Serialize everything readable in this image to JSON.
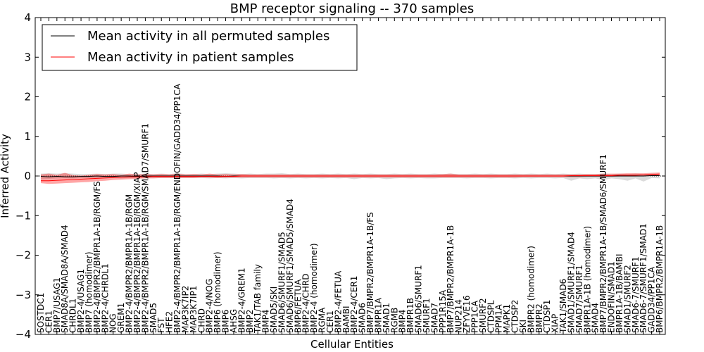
{
  "chart_data": {
    "type": "line",
    "title": "BMP receptor signaling -- 370 samples",
    "xlabel": "Cellular Entities",
    "ylabel": "Inferred Activity",
    "ylim": [
      -4,
      4
    ],
    "yticks": [
      -4,
      -3,
      -2,
      -1,
      0,
      1,
      2,
      3,
      4
    ],
    "legend_position": "upper-left",
    "categories": [
      "SOSTDC1",
      "CER1",
      "BMP7/USAG1",
      "SMAD8A/SMAD8A/SMAD4",
      "CHRDL1",
      "BMP2-4/USAG1",
      "BMP7 (homodimer)",
      "BMP2-4/BMPR2/BMPR1A-1B/RGM/FS",
      "BMP2-4/CHRDL1",
      "NOG",
      "GREM1",
      "BMP2-4/BMPR2/BMPR1A-1B/RGM",
      "BMP2-4/BMPR2/BMPR1A-1B/RGM/XIAP",
      "BMP2-4/BMPR2/BMPR1A-1B/RGM/SMAD7/SMURF1",
      "SMAD5",
      "FST",
      "HFE2",
      "BMP2-4/BMPR2/BMPR1A-1B/RGM/ENDOFIN/GADD34/PP1CA",
      "MAP3K7IP2",
      "MAP3K7IP1",
      "CHRD",
      "BMP2-4/NOG",
      "BMP6 (homodimer)",
      "BMP6",
      "AHSG",
      "BMP2-4/GREM1",
      "BMP2",
      "TAK1/TAB family",
      "BMP4",
      "SMAD5/SKI",
      "SMAD6/SMURF1/SMAD5",
      "SMAD6/SMURF1/SMAD5/SMAD4",
      "BMP6/FETUA",
      "BMP2-4/CHRD",
      "BMP2-4 (homodimer)",
      "RGMA",
      "CER1",
      "BMP2-4/FETUA",
      "BAMBI",
      "BMP2-4/CER1",
      "SMAD6",
      "BMP7/BMPR2/BMPR1A-1B/FS",
      "BMPR1A",
      "SMAD1",
      "RGMB",
      "BMP4",
      "BMPR1B",
      "SMAD6/SMURF1",
      "SMURF1",
      "SMAD7",
      "PPP1R15A",
      "BMP7/BMPR2/BMPR1A-1B",
      "NUP214",
      "ZFYVE16",
      "PPP1CA",
      "SMURF2",
      "CTDSPL",
      "PPM1A",
      "MAPK1",
      "CTDSP2",
      "SKI",
      "BMPR2 (homodimer)",
      "BMPR2",
      "CTDSP1",
      "XIAP",
      "TAK1/SMAD6",
      "SMAD1/SMURF1/SMAD4",
      "SMAD7/SMURF1",
      "BMPR1A-1B (homodimer)",
      "SMAD4",
      "BMP7/BMPR2/BMPR1A-1B/SMAD6/SMURF1",
      "ENDOFIN/SMAD1",
      "BMPR1A-1B/BAMBI",
      "SMAD1/SMURF2",
      "SMAD6-7/SMURF1",
      "SMAD6-7/SMURF1/SMAD1",
      "GADD34/PP1CA",
      "BMP6/BMPR2/BMPR1A-1B"
    ],
    "series": [
      {
        "name": "Mean activity in all permuted samples",
        "color": "#000000",
        "values": [
          -0.01,
          -0.02,
          -0.01,
          -0.02,
          -0.02,
          -0.01,
          -0.01,
          0.0,
          -0.01,
          -0.01,
          0.0,
          0.0,
          -0.01,
          0.0,
          0.0,
          0.0,
          0.0,
          0.0,
          0.0,
          0.0,
          0.0,
          0.0,
          0.0,
          -0.01,
          0.0,
          0.0,
          0.0,
          0.0,
          0.0,
          0.0,
          0.0,
          0.0,
          0.0,
          0.0,
          0.0,
          0.0,
          0.0,
          0.0,
          0.0,
          0.0,
          0.0,
          0.0,
          0.0,
          0.0,
          0.0,
          0.0,
          0.0,
          0.0,
          0.0,
          0.0,
          0.0,
          0.0,
          0.0,
          0.0,
          0.0,
          0.0,
          0.0,
          0.0,
          0.0,
          0.0,
          0.0,
          0.0,
          0.0,
          0.0,
          0.0,
          0.0,
          0.0,
          0.0,
          0.0,
          0.0,
          0.0,
          0.0,
          0.0,
          0.0,
          0.0,
          0.0,
          0.01,
          0.01
        ],
        "band_low": [
          -0.08,
          -0.07,
          -0.06,
          -0.05,
          -0.06,
          -0.05,
          -0.05,
          -0.05,
          -0.06,
          -0.05,
          -0.06,
          -0.05,
          -0.05,
          -0.05,
          -0.05,
          -0.05,
          -0.05,
          -0.05,
          -0.05,
          -0.05,
          -0.05,
          -0.06,
          -0.05,
          -0.06,
          -0.05,
          -0.06,
          -0.05,
          -0.05,
          -0.05,
          -0.06,
          -0.05,
          -0.06,
          -0.05,
          -0.06,
          -0.05,
          -0.06,
          -0.05,
          -0.06,
          -0.05,
          -0.08,
          -0.05,
          -0.06,
          -0.05,
          -0.08,
          -0.06,
          -0.05,
          -0.06,
          -0.05,
          -0.06,
          -0.06,
          -0.05,
          -0.05,
          -0.05,
          -0.06,
          -0.05,
          -0.05,
          -0.06,
          -0.05,
          -0.05,
          -0.06,
          -0.05,
          -0.06,
          -0.05,
          -0.05,
          -0.06,
          -0.05,
          -0.12,
          -0.06,
          -0.08,
          -0.06,
          -0.1,
          -0.06,
          -0.08,
          -0.12,
          -0.06,
          -0.14,
          -0.05,
          -0.06
        ],
        "band_high": [
          0.06,
          0.07,
          0.06,
          0.07,
          0.06,
          0.05,
          0.05,
          0.06,
          0.05,
          0.06,
          0.06,
          0.05,
          0.05,
          0.06,
          0.05,
          0.06,
          0.05,
          0.07,
          0.05,
          0.05,
          0.06,
          0.05,
          0.06,
          0.07,
          0.06,
          0.05,
          0.06,
          0.05,
          0.06,
          0.06,
          0.07,
          0.05,
          0.06,
          0.05,
          0.05,
          0.06,
          0.05,
          0.06,
          0.05,
          0.06,
          0.05,
          0.06,
          0.05,
          0.05,
          0.06,
          0.05,
          0.06,
          0.05,
          0.05,
          0.06,
          0.05,
          0.06,
          0.05,
          0.05,
          0.06,
          0.05,
          0.06,
          0.05,
          0.05,
          0.06,
          0.05,
          0.06,
          0.05,
          0.06,
          0.05,
          0.06,
          0.05,
          0.06,
          0.05,
          0.05,
          0.06,
          0.05,
          0.06,
          0.05,
          0.06,
          0.05,
          0.06,
          0.06
        ]
      },
      {
        "name": "Mean activity in patient samples",
        "color": "#ff0000",
        "values": [
          -0.12,
          -0.12,
          -0.11,
          -0.1,
          -0.09,
          -0.08,
          -0.07,
          -0.06,
          -0.05,
          -0.04,
          -0.03,
          -0.02,
          -0.02,
          -0.02,
          -0.01,
          -0.01,
          -0.01,
          -0.01,
          -0.01,
          -0.01,
          -0.01,
          -0.01,
          -0.01,
          -0.01,
          -0.01,
          0.0,
          0.0,
          0.0,
          0.0,
          0.0,
          0.0,
          0.0,
          0.0,
          0.0,
          0.0,
          0.0,
          0.0,
          0.0,
          0.0,
          0.0,
          0.0,
          0.0,
          0.0,
          0.0,
          0.0,
          0.0,
          0.0,
          0.0,
          0.0,
          0.0,
          0.0,
          0.0,
          0.0,
          0.0,
          0.0,
          0.0,
          0.0,
          0.0,
          0.0,
          0.0,
          0.0,
          0.0,
          0.0,
          0.0,
          0.0,
          0.0,
          0.01,
          0.01,
          0.01,
          0.01,
          0.01,
          0.01,
          0.02,
          0.02,
          0.02,
          0.03,
          0.04,
          0.05
        ],
        "band_low": [
          -0.18,
          -0.2,
          -0.19,
          -0.18,
          -0.17,
          -0.16,
          -0.15,
          -0.13,
          -0.12,
          -0.1,
          -0.09,
          -0.08,
          -0.07,
          -0.06,
          -0.06,
          -0.05,
          -0.05,
          -0.05,
          -0.05,
          -0.05,
          -0.04,
          -0.04,
          -0.05,
          -0.04,
          -0.04,
          -0.04,
          -0.04,
          -0.04,
          -0.04,
          -0.04,
          -0.04,
          -0.04,
          -0.04,
          -0.04,
          -0.04,
          -0.04,
          -0.04,
          -0.04,
          -0.04,
          -0.04,
          -0.04,
          -0.04,
          -0.04,
          -0.04,
          -0.04,
          -0.04,
          -0.04,
          -0.04,
          -0.04,
          -0.04,
          -0.04,
          -0.04,
          -0.04,
          -0.04,
          -0.04,
          -0.04,
          -0.04,
          -0.04,
          -0.04,
          -0.04,
          -0.03,
          -0.03,
          -0.03,
          -0.03,
          -0.03,
          -0.03,
          -0.03,
          -0.03,
          -0.02,
          -0.02,
          -0.02,
          -0.02,
          -0.01,
          -0.01,
          -0.01,
          0.0,
          0.01,
          0.02
        ],
        "band_high": [
          0.04,
          0.06,
          0.03,
          0.08,
          0.02,
          0.01,
          0.03,
          0.05,
          0.04,
          0.05,
          0.03,
          0.06,
          0.04,
          0.05,
          0.04,
          0.05,
          0.04,
          0.06,
          0.04,
          0.05,
          0.04,
          0.06,
          0.04,
          0.05,
          0.04,
          0.05,
          0.04,
          0.04,
          0.04,
          0.04,
          0.04,
          0.04,
          0.04,
          0.04,
          0.04,
          0.04,
          0.04,
          0.04,
          0.04,
          0.04,
          0.04,
          0.04,
          0.04,
          0.04,
          0.04,
          0.04,
          0.04,
          0.04,
          0.04,
          0.04,
          0.05,
          0.06,
          0.04,
          0.04,
          0.04,
          0.04,
          0.04,
          0.04,
          0.04,
          0.04,
          0.04,
          0.04,
          0.04,
          0.04,
          0.04,
          0.04,
          0.04,
          0.04,
          0.05,
          0.05,
          0.06,
          0.06,
          0.06,
          0.07,
          0.07,
          0.07,
          0.08,
          0.09
        ]
      }
    ],
    "legend": [
      {
        "label": "Mean activity in all permuted samples",
        "color": "#000000"
      },
      {
        "label": "Mean activity in patient samples",
        "color": "#ff0000"
      }
    ]
  }
}
